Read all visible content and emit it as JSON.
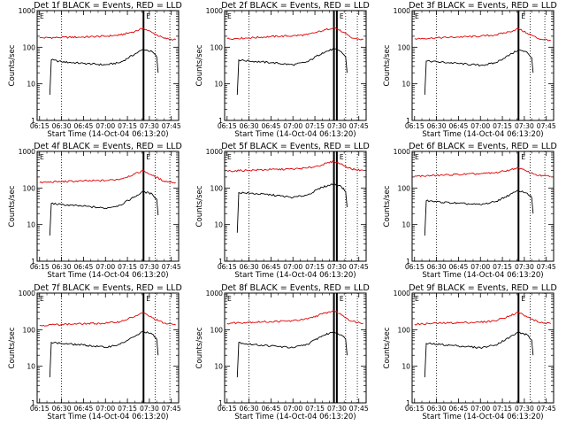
{
  "chart_data": [
    {
      "type": "line",
      "title": "Det 1f BLACK = Events, RED = LLD",
      "xlabel": "Start Time (14-Oct-04 06:13:20)",
      "ylabel": "Counts/sec",
      "yscale": "log",
      "ylim": [
        1,
        1000
      ],
      "xticks": [
        "06:15",
        "06:30",
        "06:45",
        "07:00",
        "07:15",
        "07:30",
        "07:45"
      ],
      "yticks": [
        "1",
        "10",
        "100",
        "1000"
      ],
      "markers": {
        "dotted": [
          "06:30",
          "07:34",
          "07:44"
        ],
        "solid": [
          "07:26"
        ]
      },
      "flags": [
        "E",
        "E"
      ],
      "series": [
        {
          "color": "#e00000",
          "x": [
            "06:15",
            "06:30",
            "06:45",
            "07:00",
            "07:10",
            "07:20",
            "07:26",
            "07:32",
            "07:40",
            "07:48"
          ],
          "y": [
            180,
            185,
            190,
            200,
            215,
            270,
            330,
            250,
            175,
            160
          ]
        },
        {
          "color": "#000000",
          "x": [
            "06:22",
            "06:23",
            "06:30",
            "06:45",
            "07:00",
            "07:10",
            "07:20",
            "07:26",
            "07:32",
            "07:35",
            "07:36"
          ],
          "y": [
            5,
            45,
            40,
            36,
            33,
            38,
            65,
            88,
            75,
            55,
            20
          ]
        }
      ]
    },
    {
      "type": "line",
      "title": "Det 2f BLACK = Events, RED = LLD",
      "xlabel": "Start Time (14-Oct-04 06:13:20)",
      "ylabel": "Counts/sec",
      "yscale": "log",
      "ylim": [
        1,
        1000
      ],
      "xticks": [
        "06:15",
        "06:30",
        "06:45",
        "07:00",
        "07:15",
        "07:30",
        "07:45"
      ],
      "yticks": [
        "1",
        "10",
        "100",
        "1000"
      ],
      "markers": {
        "dotted": [
          "06:30",
          "07:36",
          "07:44"
        ],
        "solid": [
          "07:28",
          "07:30"
        ]
      },
      "flags": [
        "E",
        "E"
      ],
      "series": [
        {
          "color": "#e00000",
          "x": [
            "06:15",
            "06:30",
            "06:45",
            "07:00",
            "07:10",
            "07:20",
            "07:28",
            "07:34",
            "07:40",
            "07:48"
          ],
          "y": [
            170,
            180,
            195,
            205,
            220,
            280,
            350,
            260,
            180,
            160
          ]
        },
        {
          "color": "#000000",
          "x": [
            "06:22",
            "06:23",
            "06:30",
            "06:45",
            "07:00",
            "07:10",
            "07:20",
            "07:28",
            "07:33",
            "07:36",
            "07:37"
          ],
          "y": [
            5,
            45,
            42,
            38,
            33,
            40,
            70,
            90,
            75,
            55,
            20
          ]
        }
      ]
    },
    {
      "type": "line",
      "title": "Det 3f BLACK = Events, RED = LLD",
      "xlabel": "Start Time (14-Oct-04 06:13:20)",
      "ylabel": "Counts/sec",
      "yscale": "log",
      "ylim": [
        1,
        1000
      ],
      "xticks": [
        "06:15",
        "06:30",
        "06:45",
        "07:00",
        "07:15",
        "07:30",
        "07:45"
      ],
      "yticks": [
        "1",
        "10",
        "100",
        "1000"
      ],
      "markers": {
        "dotted": [
          "06:30",
          "07:34",
          "07:44"
        ],
        "solid": [
          "07:26"
        ]
      },
      "flags": [
        "E",
        "E"
      ],
      "series": [
        {
          "color": "#e00000",
          "x": [
            "06:15",
            "06:30",
            "06:45",
            "07:00",
            "07:10",
            "07:20",
            "07:26",
            "07:32",
            "07:40",
            "07:48"
          ],
          "y": [
            170,
            180,
            190,
            200,
            215,
            265,
            320,
            240,
            170,
            155
          ]
        },
        {
          "color": "#000000",
          "x": [
            "06:22",
            "06:23",
            "06:30",
            "06:45",
            "07:00",
            "07:10",
            "07:20",
            "07:26",
            "07:32",
            "07:35",
            "07:36"
          ],
          "y": [
            5,
            42,
            40,
            36,
            32,
            37,
            62,
            85,
            72,
            52,
            20
          ]
        }
      ]
    },
    {
      "type": "line",
      "title": "Det 4f BLACK = Events, RED = LLD",
      "xlabel": "Start Time (14-Oct-04 06:13:20)",
      "ylabel": "Counts/sec",
      "yscale": "log",
      "ylim": [
        1,
        1000
      ],
      "xticks": [
        "06:15",
        "06:30",
        "06:45",
        "07:00",
        "07:15",
        "07:30",
        "07:45"
      ],
      "yticks": [
        "1",
        "10",
        "100",
        "1000"
      ],
      "markers": {
        "dotted": [
          "06:30",
          "07:34",
          "07:44"
        ],
        "solid": [
          "07:26"
        ]
      },
      "flags": [
        "E",
        "E"
      ],
      "series": [
        {
          "color": "#e00000",
          "x": [
            "06:15",
            "06:30",
            "06:45",
            "07:00",
            "07:10",
            "07:20",
            "07:26",
            "07:32",
            "07:40",
            "07:48"
          ],
          "y": [
            140,
            150,
            155,
            160,
            175,
            240,
            300,
            220,
            155,
            140
          ]
        },
        {
          "color": "#000000",
          "x": [
            "06:22",
            "06:23",
            "06:30",
            "06:45",
            "07:00",
            "07:10",
            "07:20",
            "07:26",
            "07:32",
            "07:35",
            "07:36"
          ],
          "y": [
            5,
            38,
            35,
            32,
            28,
            34,
            58,
            80,
            68,
            50,
            18
          ]
        }
      ]
    },
    {
      "type": "line",
      "title": "Det 5f BLACK = Events, RED = LLD",
      "xlabel": "Start Time (14-Oct-04 06:13:20)",
      "ylabel": "Counts/sec",
      "yscale": "log",
      "ylim": [
        1,
        1000
      ],
      "xticks": [
        "06:15",
        "06:30",
        "06:45",
        "07:00",
        "07:15",
        "07:30",
        "07:45"
      ],
      "yticks": [
        "1",
        "10",
        "100",
        "1000"
      ],
      "markers": {
        "dotted": [
          "06:30",
          "07:36",
          "07:44"
        ],
        "solid": [
          "07:28",
          "07:30"
        ]
      },
      "flags": [
        "E",
        "E"
      ],
      "series": [
        {
          "color": "#e00000",
          "x": [
            "06:15",
            "06:30",
            "06:45",
            "07:00",
            "07:10",
            "07:20",
            "07:28",
            "07:34",
            "07:40",
            "07:48"
          ],
          "y": [
            290,
            305,
            320,
            330,
            350,
            430,
            540,
            430,
            330,
            300
          ]
        },
        {
          "color": "#000000",
          "x": [
            "06:22",
            "06:23",
            "06:30",
            "06:45",
            "07:00",
            "07:10",
            "07:20",
            "07:28",
            "07:33",
            "07:36",
            "07:37"
          ],
          "y": [
            6,
            75,
            72,
            65,
            55,
            65,
            105,
            130,
            110,
            80,
            30
          ]
        }
      ]
    },
    {
      "type": "line",
      "title": "Det 6f BLACK = Events, RED = LLD",
      "xlabel": "Start Time (14-Oct-04 06:13:20)",
      "ylabel": "Counts/sec",
      "yscale": "log",
      "ylim": [
        1,
        1000
      ],
      "xticks": [
        "06:15",
        "06:30",
        "06:45",
        "07:00",
        "07:15",
        "07:30",
        "07:45"
      ],
      "yticks": [
        "1",
        "10",
        "100",
        "1000"
      ],
      "markers": {
        "dotted": [
          "06:30",
          "07:34",
          "07:44"
        ],
        "solid": [
          "07:26"
        ]
      },
      "flags": [
        "E",
        "E"
      ],
      "series": [
        {
          "color": "#e00000",
          "x": [
            "06:15",
            "06:30",
            "06:45",
            "07:00",
            "07:10",
            "07:20",
            "07:26",
            "07:32",
            "07:40",
            "07:48"
          ],
          "y": [
            210,
            220,
            235,
            245,
            260,
            310,
            360,
            280,
            220,
            210
          ]
        },
        {
          "color": "#000000",
          "x": [
            "06:22",
            "06:23",
            "06:30",
            "06:45",
            "07:00",
            "07:10",
            "07:20",
            "07:26",
            "07:32",
            "07:35",
            "07:36"
          ],
          "y": [
            5,
            45,
            42,
            38,
            35,
            42,
            65,
            85,
            72,
            55,
            20
          ]
        }
      ]
    },
    {
      "type": "line",
      "title": "Det 7f BLACK = Events, RED = LLD",
      "xlabel": "Start Time (14-Oct-04 06:13:20)",
      "ylabel": "Counts/sec",
      "yscale": "log",
      "ylim": [
        1,
        1000
      ],
      "xticks": [
        "06:15",
        "06:30",
        "06:45",
        "07:00",
        "07:15",
        "07:30",
        "07:45"
      ],
      "yticks": [
        "1",
        "10",
        "100",
        "1000"
      ],
      "markers": {
        "dotted": [
          "06:30",
          "07:34",
          "07:44"
        ],
        "solid": [
          "07:26"
        ]
      },
      "flags": [
        "E",
        "E"
      ],
      "series": [
        {
          "color": "#e00000",
          "x": [
            "06:15",
            "06:30",
            "06:45",
            "07:00",
            "07:10",
            "07:20",
            "07:26",
            "07:32",
            "07:40",
            "07:48"
          ],
          "y": [
            130,
            140,
            145,
            150,
            165,
            230,
            290,
            210,
            150,
            135
          ]
        },
        {
          "color": "#000000",
          "x": [
            "06:22",
            "06:23",
            "06:30",
            "06:45",
            "07:00",
            "07:10",
            "07:20",
            "07:26",
            "07:32",
            "07:35",
            "07:36"
          ],
          "y": [
            5,
            45,
            42,
            38,
            33,
            40,
            65,
            90,
            75,
            55,
            20
          ]
        }
      ]
    },
    {
      "type": "line",
      "title": "Det 8f BLACK = Events, RED = LLD",
      "xlabel": "Start Time (14-Oct-04 06:13:20)",
      "ylabel": "Counts/sec",
      "yscale": "log",
      "ylim": [
        1,
        1000
      ],
      "xticks": [
        "06:15",
        "06:30",
        "06:45",
        "07:00",
        "07:15",
        "07:30",
        "07:45"
      ],
      "yticks": [
        "1",
        "10",
        "100",
        "1000"
      ],
      "markers": {
        "dotted": [
          "06:30",
          "07:36",
          "07:44"
        ],
        "solid": [
          "07:28",
          "07:30"
        ]
      },
      "flags": [
        "E",
        "E"
      ],
      "series": [
        {
          "color": "#e00000",
          "x": [
            "06:15",
            "06:30",
            "06:45",
            "07:00",
            "07:10",
            "07:20",
            "07:28",
            "07:34",
            "07:40",
            "07:48"
          ],
          "y": [
            150,
            160,
            165,
            175,
            195,
            270,
            330,
            245,
            170,
            150
          ]
        },
        {
          "color": "#000000",
          "x": [
            "06:22",
            "06:23",
            "06:30",
            "06:45",
            "07:00",
            "07:10",
            "07:20",
            "07:28",
            "07:33",
            "07:36",
            "07:37"
          ],
          "y": [
            5,
            45,
            40,
            36,
            32,
            40,
            68,
            88,
            72,
            55,
            20
          ]
        }
      ]
    },
    {
      "type": "line",
      "title": "Det 9f BLACK = Events, RED = LLD",
      "xlabel": "Start Time (14-Oct-04 06:13:20)",
      "ylabel": "Counts/sec",
      "yscale": "log",
      "ylim": [
        1,
        1000
      ],
      "xticks": [
        "06:15",
        "06:30",
        "06:45",
        "07:00",
        "07:15",
        "07:30",
        "07:45"
      ],
      "yticks": [
        "1",
        "10",
        "100",
        "1000"
      ],
      "markers": {
        "dotted": [
          "06:30",
          "07:34",
          "07:44"
        ],
        "solid": [
          "07:26"
        ]
      },
      "flags": [
        "E",
        "E"
      ],
      "series": [
        {
          "color": "#e00000",
          "x": [
            "06:15",
            "06:30",
            "06:45",
            "07:00",
            "07:10",
            "07:20",
            "07:26",
            "07:32",
            "07:40",
            "07:48"
          ],
          "y": [
            140,
            150,
            155,
            160,
            175,
            240,
            300,
            220,
            160,
            145
          ]
        },
        {
          "color": "#000000",
          "x": [
            "06:22",
            "06:23",
            "06:30",
            "06:45",
            "07:00",
            "07:10",
            "07:20",
            "07:26",
            "07:32",
            "07:35",
            "07:36"
          ],
          "y": [
            5,
            42,
            40,
            36,
            32,
            38,
            62,
            85,
            72,
            52,
            20
          ]
        }
      ]
    }
  ]
}
